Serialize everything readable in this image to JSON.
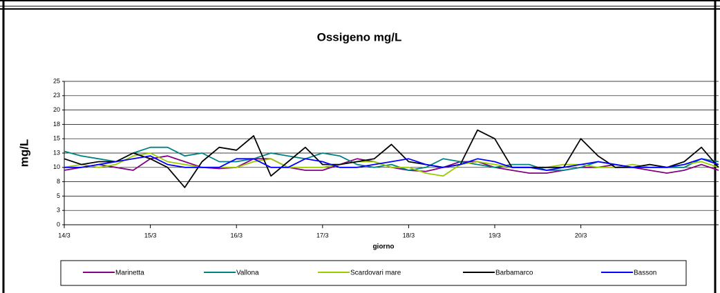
{
  "chart_data": {
    "type": "line",
    "title": "Ossigeno mg/L",
    "y_label": "mg/L",
    "x_label": "giorno",
    "x": [
      0,
      0.2,
      0.4,
      0.6,
      0.8,
      1,
      1.2,
      1.4,
      1.6,
      1.8,
      2,
      2.2,
      2.4,
      2.6,
      2.8,
      3,
      3.2,
      3.4,
      3.6,
      3.8,
      4,
      4.2,
      4.4,
      4.6,
      4.8,
      5,
      5.2,
      5.4,
      5.6,
      5.8,
      6,
      6.2,
      6.4,
      6.6,
      6.8,
      7,
      7.2,
      7.4,
      7.6
    ],
    "xlim": [
      0,
      7.6
    ],
    "xticks": [
      {
        "value": 0,
        "label": "14/3"
      },
      {
        "value": 1,
        "label": "15/3"
      },
      {
        "value": 2,
        "label": "16/3"
      },
      {
        "value": 3,
        "label": "17/3"
      },
      {
        "value": 4,
        "label": "18/3"
      },
      {
        "value": 5,
        "label": "19/3"
      },
      {
        "value": 6,
        "label": "20/3"
      }
    ],
    "ylim": [
      0,
      25
    ],
    "yticks": [
      0,
      {
        "value": 2.5,
        "label": "3"
      },
      5,
      {
        "value": 7.5,
        "label": "8"
      },
      10,
      {
        "value": 12.5,
        "label": "13"
      },
      15,
      {
        "value": 17.5,
        "label": "18"
      },
      20,
      {
        "value": 22.5,
        "label": "23"
      },
      25
    ],
    "grid": true,
    "series": [
      {
        "name": "Marinetta",
        "color": "#800080",
        "values": [
          9.5,
          10,
          10.5,
          10,
          9.5,
          11.5,
          12,
          11,
          10,
          9.8,
          10,
          11.5,
          11.5,
          10,
          9.5,
          9.5,
          10.5,
          11.5,
          11,
          10,
          9.5,
          9.3,
          10,
          11,
          11,
          10,
          9.5,
          9,
          9,
          9.5,
          10,
          10,
          10.5,
          10,
          9.5,
          9,
          9.5,
          10.5,
          9.5
        ]
      },
      {
        "name": "Vallona",
        "color": "#008080",
        "values": [
          12.8,
          12,
          11.5,
          11,
          12.5,
          13.5,
          13.5,
          12,
          12.5,
          11,
          11,
          11.5,
          12.5,
          12,
          11.5,
          12.5,
          12,
          10.5,
          10,
          10.5,
          9.5,
          10,
          11.5,
          11,
          10.5,
          10,
          10.5,
          10.5,
          9.5,
          9.5,
          10,
          11,
          10.5,
          10,
          10.5,
          10,
          10,
          11.5,
          11
        ]
      },
      {
        "name": "Scardovari mare",
        "color": "#99cc00",
        "values": [
          10,
          10.5,
          10,
          10.5,
          12,
          12.5,
          11,
          10.5,
          10,
          10,
          10,
          11,
          11.5,
          10,
          10,
          10,
          10.5,
          11,
          11,
          10,
          10,
          9,
          8.5,
          10.5,
          11,
          10.5,
          10,
          10,
          10,
          10.5,
          10.5,
          10,
          10,
          10.5,
          10,
          10,
          10.5,
          11,
          10
        ]
      },
      {
        "name": "Barbamarco",
        "color": "#000000",
        "values": [
          11.5,
          10.5,
          11,
          11,
          12.5,
          11.5,
          10,
          6.5,
          11,
          13.5,
          13,
          15.5,
          8.5,
          11,
          13.5,
          10.5,
          10.5,
          11,
          11.5,
          14,
          11,
          10.5,
          10,
          10.5,
          16.5,
          15,
          10,
          10,
          10,
          10,
          15,
          12,
          10,
          10,
          10.5,
          10,
          11,
          13.5,
          10
        ]
      },
      {
        "name": "Basson",
        "color": "#0000ff",
        "values": [
          10,
          10,
          10.5,
          11,
          11.5,
          12,
          10.5,
          10,
          10,
          10,
          11.5,
          11.5,
          10,
          10,
          11.5,
          11,
          10,
          10,
          10.5,
          11,
          11.5,
          10.5,
          10,
          10.5,
          11.5,
          11,
          10,
          10,
          9.5,
          10,
          10.5,
          11,
          10.5,
          10,
          10,
          10,
          10.5,
          11.5,
          10.5
        ]
      }
    ]
  }
}
